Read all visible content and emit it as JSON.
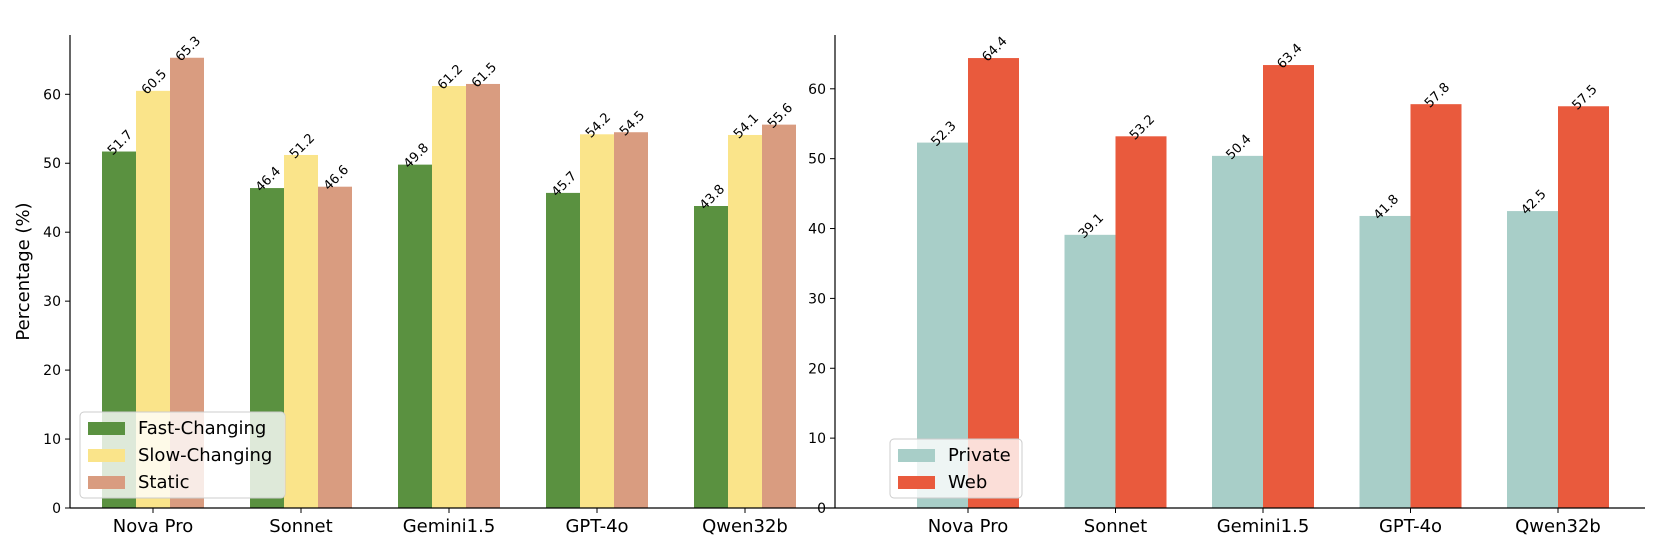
{
  "colors": {
    "fast_changing": "#5a9140",
    "slow_changing": "#fae48a",
    "static": "#d99c80",
    "private": "#a8cec8",
    "web": "#e95a3d"
  },
  "chart_data": [
    {
      "type": "bar",
      "categories": [
        "Nova Pro",
        "Sonnet",
        "Gemini1.5",
        "GPT-4o",
        "Qwen32b"
      ],
      "series": [
        {
          "name": "Fast-Changing",
          "values": [
            51.7,
            46.4,
            49.8,
            45.7,
            43.8
          ],
          "color": "#5a9140"
        },
        {
          "name": "Slow-Changing",
          "values": [
            60.5,
            51.2,
            61.2,
            54.2,
            54.1
          ],
          "color": "#fae48a"
        },
        {
          "name": "Static",
          "values": [
            65.3,
            46.6,
            61.5,
            54.5,
            55.6
          ],
          "color": "#d99c80"
        }
      ],
      "ylabel": "Percentage (%)",
      "ylim": [
        0,
        68.6
      ],
      "yticks": [
        0,
        10,
        20,
        30,
        40,
        50,
        60
      ],
      "legend": "lower-left",
      "grid": false
    },
    {
      "type": "bar",
      "categories": [
        "Nova Pro",
        "Sonnet",
        "Gemini1.5",
        "GPT-4o",
        "Qwen32b"
      ],
      "series": [
        {
          "name": "Private",
          "values": [
            52.3,
            39.1,
            50.4,
            41.8,
            42.5
          ],
          "color": "#a8cec8"
        },
        {
          "name": "Web",
          "values": [
            64.4,
            53.2,
            63.4,
            57.8,
            57.5
          ],
          "color": "#e95a3d"
        }
      ],
      "ylabel": "",
      "ylim": [
        0,
        67.7
      ],
      "yticks": [
        0,
        10,
        20,
        30,
        40,
        50,
        60
      ],
      "legend": "lower-left",
      "grid": false
    }
  ]
}
